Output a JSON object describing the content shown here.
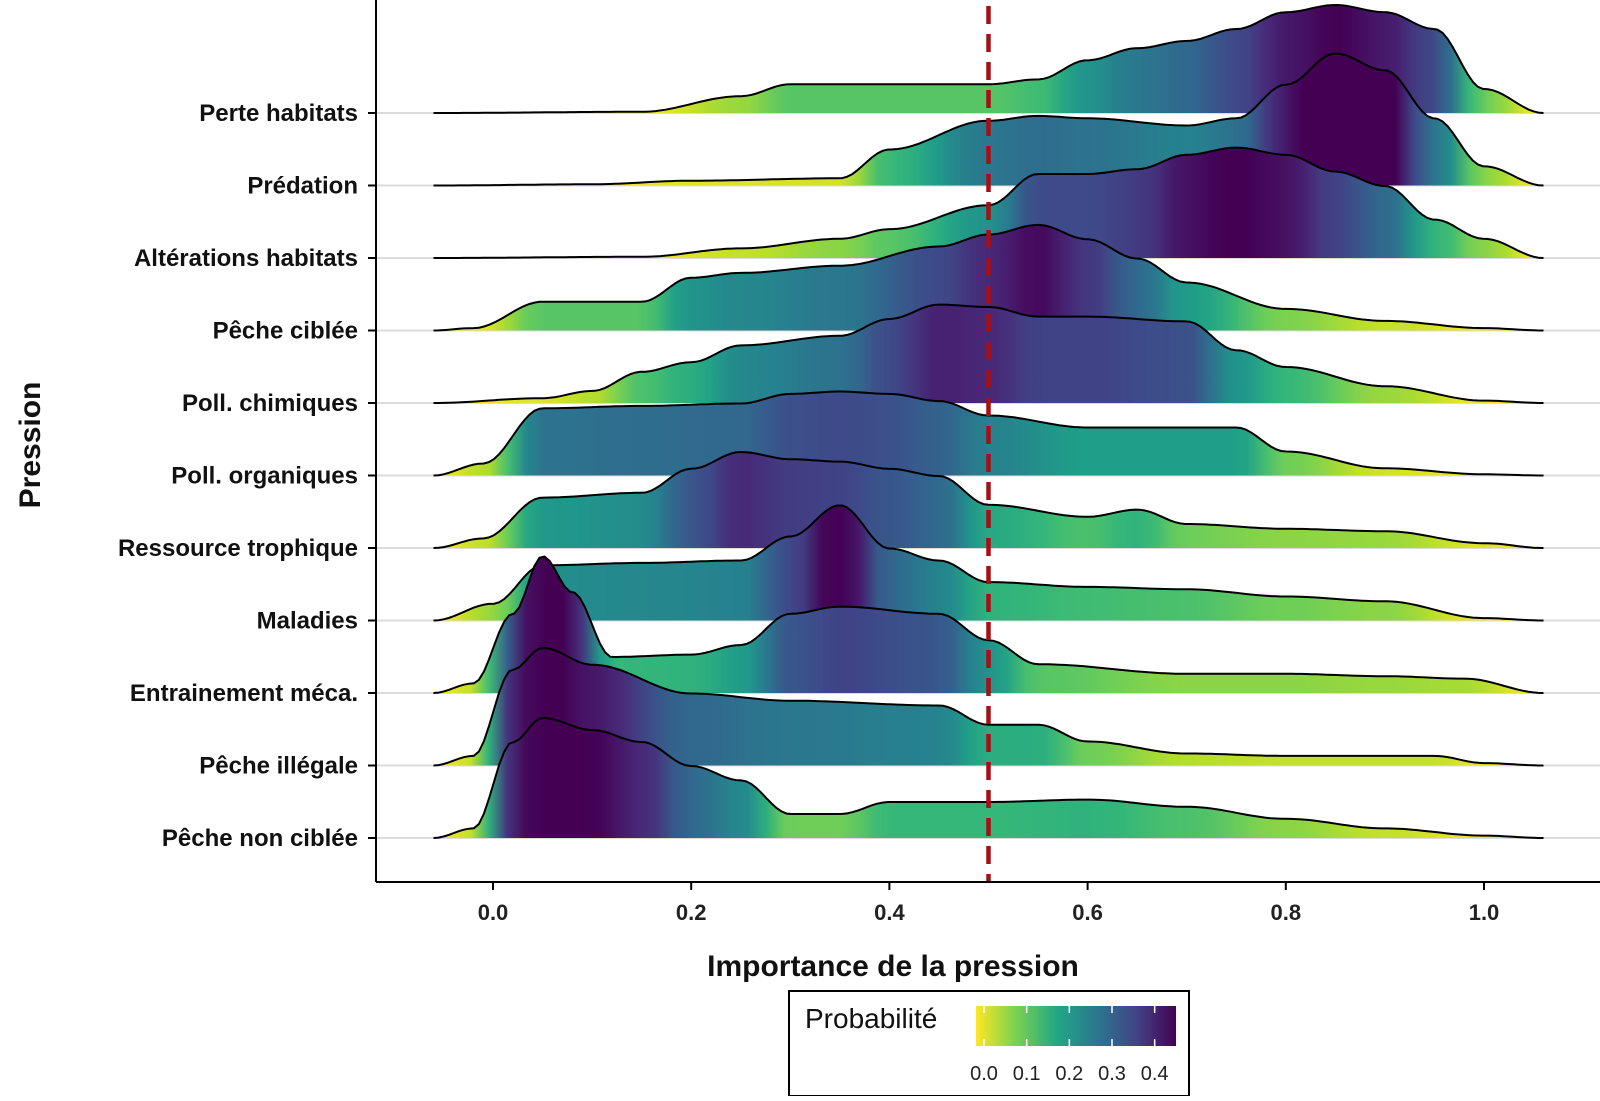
{
  "chart_data": {
    "type": "ridgeline",
    "xlabel": "Importance de la pression",
    "ylabel": "Pression",
    "xlim": [
      -0.12,
      1.12
    ],
    "x_ticks": [
      0.0,
      0.2,
      0.4,
      0.6,
      0.8,
      1.0
    ],
    "x_tick_labels": [
      "0.0",
      "0.2",
      "0.4",
      "0.6",
      "0.8",
      "1.0"
    ],
    "reference_line": {
      "x": 0.5,
      "color": "#a50f15",
      "style": "dashed"
    },
    "legend": {
      "title": "Probabilité",
      "placement": "bottom",
      "ticks": [
        0.0,
        0.1,
        0.2,
        0.3,
        0.4
      ],
      "tick_labels": [
        "0.0",
        "0.1",
        "0.2",
        "0.3",
        "0.4"
      ],
      "colors": [
        "#fde725",
        "#7ad151",
        "#22a884",
        "#2a788e",
        "#414487",
        "#440154"
      ]
    },
    "fill_colormap": "viridis (reversed, by density)",
    "grid": "horizontal baselines only",
    "series": [
      {
        "name": "Perte habitats",
        "x": [
          -0.06,
          0.15,
          0.25,
          0.3,
          0.4,
          0.5,
          0.55,
          0.6,
          0.65,
          0.7,
          0.75,
          0.8,
          0.85,
          0.9,
          0.95,
          1.0,
          1.06
        ],
        "density": [
          0.0,
          0.005,
          0.07,
          0.12,
          0.12,
          0.12,
          0.14,
          0.22,
          0.27,
          0.3,
          0.35,
          0.42,
          0.45,
          0.42,
          0.35,
          0.1,
          0.0
        ]
      },
      {
        "name": "Prédation",
        "x": [
          -0.06,
          0.1,
          0.2,
          0.35,
          0.4,
          0.5,
          0.55,
          0.6,
          0.7,
          0.75,
          0.8,
          0.85,
          0.9,
          0.95,
          1.0,
          1.06
        ],
        "density": [
          0.0,
          0.005,
          0.02,
          0.03,
          0.15,
          0.27,
          0.29,
          0.28,
          0.25,
          0.28,
          0.42,
          0.55,
          0.48,
          0.28,
          0.08,
          0.0
        ]
      },
      {
        "name": "Altérations habitats",
        "x": [
          -0.06,
          0.15,
          0.25,
          0.35,
          0.4,
          0.5,
          0.55,
          0.6,
          0.65,
          0.7,
          0.75,
          0.8,
          0.85,
          0.9,
          0.95,
          1.0,
          1.06
        ],
        "density": [
          0.0,
          0.005,
          0.04,
          0.08,
          0.12,
          0.22,
          0.35,
          0.35,
          0.37,
          0.43,
          0.46,
          0.43,
          0.36,
          0.3,
          0.16,
          0.08,
          0.0
        ]
      },
      {
        "name": "Pêche ciblée",
        "x": [
          -0.06,
          -0.02,
          0.05,
          0.15,
          0.2,
          0.25,
          0.35,
          0.45,
          0.5,
          0.55,
          0.6,
          0.65,
          0.7,
          0.8,
          0.9,
          1.0,
          1.06
        ],
        "density": [
          0.0,
          0.01,
          0.12,
          0.12,
          0.22,
          0.24,
          0.27,
          0.35,
          0.4,
          0.44,
          0.38,
          0.3,
          0.2,
          0.09,
          0.04,
          0.01,
          0.0
        ]
      },
      {
        "name": "Poll. chimiques",
        "x": [
          -0.06,
          0.05,
          0.1,
          0.15,
          0.2,
          0.25,
          0.35,
          0.4,
          0.45,
          0.5,
          0.55,
          0.6,
          0.7,
          0.75,
          0.8,
          0.9,
          1.0,
          1.06
        ],
        "density": [
          0.0,
          0.02,
          0.05,
          0.13,
          0.17,
          0.24,
          0.28,
          0.35,
          0.41,
          0.4,
          0.36,
          0.36,
          0.34,
          0.22,
          0.15,
          0.07,
          0.01,
          0.0
        ]
      },
      {
        "name": "Poll. organiques",
        "x": [
          -0.06,
          -0.01,
          0.05,
          0.15,
          0.25,
          0.3,
          0.35,
          0.4,
          0.45,
          0.5,
          0.6,
          0.7,
          0.75,
          0.8,
          0.9,
          1.0,
          1.06
        ],
        "density": [
          0.0,
          0.05,
          0.28,
          0.29,
          0.3,
          0.34,
          0.35,
          0.34,
          0.31,
          0.25,
          0.2,
          0.2,
          0.2,
          0.1,
          0.03,
          0.005,
          0.0
        ]
      },
      {
        "name": "Ressource trophique",
        "x": [
          -0.06,
          -0.01,
          0.05,
          0.15,
          0.2,
          0.25,
          0.3,
          0.35,
          0.4,
          0.45,
          0.5,
          0.6,
          0.65,
          0.7,
          0.8,
          0.9,
          1.0,
          1.06
        ],
        "density": [
          0.0,
          0.04,
          0.21,
          0.23,
          0.33,
          0.4,
          0.37,
          0.36,
          0.33,
          0.3,
          0.18,
          0.13,
          0.16,
          0.1,
          0.08,
          0.07,
          0.02,
          0.0
        ]
      },
      {
        "name": "Maladies",
        "x": [
          -0.06,
          0.0,
          0.05,
          0.15,
          0.25,
          0.3,
          0.35,
          0.4,
          0.45,
          0.5,
          0.6,
          0.7,
          0.8,
          0.9,
          1.0,
          1.06
        ],
        "density": [
          0.0,
          0.07,
          0.23,
          0.24,
          0.25,
          0.35,
          0.48,
          0.3,
          0.25,
          0.16,
          0.14,
          0.13,
          0.1,
          0.08,
          0.01,
          0.0
        ]
      },
      {
        "name": "Entrainement méca.",
        "x": [
          -0.06,
          -0.02,
          0.02,
          0.05,
          0.08,
          0.12,
          0.2,
          0.25,
          0.3,
          0.35,
          0.45,
          0.5,
          0.55,
          0.7,
          0.8,
          0.9,
          0.98,
          1.06
        ],
        "density": [
          0.0,
          0.04,
          0.33,
          0.57,
          0.42,
          0.15,
          0.16,
          0.2,
          0.33,
          0.36,
          0.33,
          0.22,
          0.12,
          0.08,
          0.08,
          0.07,
          0.06,
          0.0
        ]
      },
      {
        "name": "Pêche illégale",
        "x": [
          -0.06,
          -0.02,
          0.02,
          0.05,
          0.1,
          0.2,
          0.3,
          0.45,
          0.5,
          0.55,
          0.6,
          0.7,
          0.8,
          0.9,
          0.95,
          1.0,
          1.06
        ],
        "density": [
          0.0,
          0.04,
          0.4,
          0.49,
          0.42,
          0.3,
          0.27,
          0.25,
          0.17,
          0.17,
          0.1,
          0.05,
          0.04,
          0.04,
          0.04,
          0.01,
          0.0
        ]
      },
      {
        "name": "Pêche non ciblée",
        "x": [
          -0.06,
          -0.02,
          0.02,
          0.05,
          0.1,
          0.15,
          0.2,
          0.25,
          0.3,
          0.35,
          0.4,
          0.5,
          0.6,
          0.7,
          0.8,
          0.9,
          1.0,
          1.06
        ],
        "density": [
          0.0,
          0.04,
          0.4,
          0.5,
          0.45,
          0.4,
          0.3,
          0.24,
          0.1,
          0.1,
          0.15,
          0.15,
          0.16,
          0.13,
          0.08,
          0.04,
          0.01,
          0.0
        ]
      }
    ]
  }
}
